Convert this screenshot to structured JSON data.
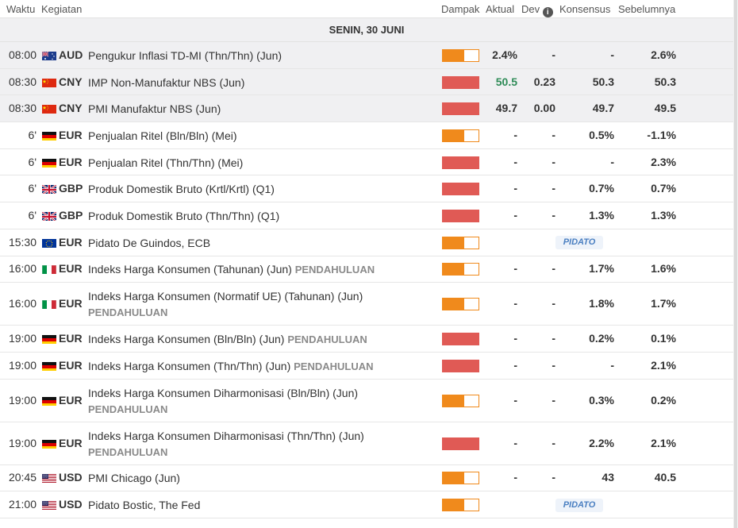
{
  "header": {
    "time": "Waktu",
    "event": "Kegiatan",
    "impact": "Dampak",
    "actual": "Aktual",
    "dev": "Dev",
    "consensus": "Konsensus",
    "previous": "Sebelumnya"
  },
  "date_label": "SENIN, 30 JUNI",
  "colors": {
    "impact_medium": "#f08a1c",
    "impact_high": "#e05a55",
    "actual_up": "#2e8b57",
    "speech_text": "#4a7fc1"
  },
  "rows": [
    {
      "time": "08:00",
      "flag": "au-flag",
      "currency": "AUD",
      "event": "Pengukur Inflasi TD-MI (Thn/Thn) (Jun)",
      "prelim": "",
      "impact": "medium",
      "impact_level": 0.6,
      "actual": "2.4%",
      "actual_trend": "",
      "dev": "-",
      "consensus": "-",
      "previous": "2.6%",
      "speech": "",
      "shaded": true,
      "lines": 1
    },
    {
      "time": "08:30",
      "flag": "cn-flag",
      "currency": "CNY",
      "event": "IMP Non-Manufaktur NBS (Jun)",
      "prelim": "",
      "impact": "high",
      "impact_level": 1.0,
      "actual": "50.5",
      "actual_trend": "up",
      "dev": "0.23",
      "consensus": "50.3",
      "previous": "50.3",
      "speech": "",
      "shaded": true,
      "lines": 1
    },
    {
      "time": "08:30",
      "flag": "cn-flag",
      "currency": "CNY",
      "event": "PMI Manufaktur NBS (Jun)",
      "prelim": "",
      "impact": "high",
      "impact_level": 1.0,
      "actual": "49.7",
      "actual_trend": "",
      "dev": "0.00",
      "consensus": "49.7",
      "previous": "49.5",
      "speech": "",
      "shaded": true,
      "lines": 1
    },
    {
      "time": "6'",
      "flag": "de-flag",
      "currency": "EUR",
      "event": "Penjualan Ritel (Bln/Bln) (Mei)",
      "prelim": "",
      "impact": "medium",
      "impact_level": 0.6,
      "actual": "-",
      "actual_trend": "",
      "dev": "-",
      "consensus": "0.5%",
      "previous": "-1.1%",
      "speech": "",
      "shaded": false,
      "lines": 1
    },
    {
      "time": "6'",
      "flag": "de-flag",
      "currency": "EUR",
      "event": "Penjualan Ritel (Thn/Thn) (Mei)",
      "prelim": "",
      "impact": "high",
      "impact_level": 1.0,
      "actual": "-",
      "actual_trend": "",
      "dev": "-",
      "consensus": "-",
      "previous": "2.3%",
      "speech": "",
      "shaded": false,
      "lines": 1
    },
    {
      "time": "6'",
      "flag": "gb-flag",
      "currency": "GBP",
      "event": "Produk Domestik Bruto (Krtl/Krtl) (Q1)",
      "prelim": "",
      "impact": "high",
      "impact_level": 1.0,
      "actual": "-",
      "actual_trend": "",
      "dev": "-",
      "consensus": "0.7%",
      "previous": "0.7%",
      "speech": "",
      "shaded": false,
      "lines": 1
    },
    {
      "time": "6'",
      "flag": "gb-flag",
      "currency": "GBP",
      "event": "Produk Domestik Bruto (Thn/Thn) (Q1)",
      "prelim": "",
      "impact": "high",
      "impact_level": 1.0,
      "actual": "-",
      "actual_trend": "",
      "dev": "-",
      "consensus": "1.3%",
      "previous": "1.3%",
      "speech": "",
      "shaded": false,
      "lines": 1
    },
    {
      "time": "15:30",
      "flag": "eu-flag",
      "currency": "EUR",
      "event": "Pidato De Guindos, ECB",
      "prelim": "",
      "impact": "medium",
      "impact_level": 0.6,
      "actual": "",
      "actual_trend": "",
      "dev": "",
      "consensus": "",
      "previous": "",
      "speech": "PIDATO",
      "shaded": false,
      "lines": 1
    },
    {
      "time": "16:00",
      "flag": "it-flag",
      "currency": "EUR",
      "event": "Indeks Harga Konsumen (Tahunan) (Jun)",
      "prelim": "PENDAHULUAN",
      "impact": "medium",
      "impact_level": 0.6,
      "actual": "-",
      "actual_trend": "",
      "dev": "-",
      "consensus": "1.7%",
      "previous": "1.6%",
      "speech": "",
      "shaded": false,
      "lines": 1
    },
    {
      "time": "16:00",
      "flag": "it-flag",
      "currency": "EUR",
      "event": "Indeks Harga Konsumen (Normatif UE) (Tahunan) (Jun)",
      "prelim": "PENDAHULUAN",
      "impact": "medium",
      "impact_level": 0.6,
      "actual": "-",
      "actual_trend": "",
      "dev": "-",
      "consensus": "1.8%",
      "previous": "1.7%",
      "speech": "",
      "shaded": false,
      "lines": 2
    },
    {
      "time": "19:00",
      "flag": "de-flag",
      "currency": "EUR",
      "event": "Indeks Harga Konsumen (Bln/Bln) (Jun)",
      "prelim": "PENDAHULUAN",
      "impact": "high",
      "impact_level": 1.0,
      "actual": "-",
      "actual_trend": "",
      "dev": "-",
      "consensus": "0.2%",
      "previous": "0.1%",
      "speech": "",
      "shaded": false,
      "lines": 1
    },
    {
      "time": "19:00",
      "flag": "de-flag",
      "currency": "EUR",
      "event": "Indeks Harga Konsumen (Thn/Thn) (Jun)",
      "prelim": "PENDAHULUAN",
      "impact": "high",
      "impact_level": 1.0,
      "actual": "-",
      "actual_trend": "",
      "dev": "-",
      "consensus": "-",
      "previous": "2.1%",
      "speech": "",
      "shaded": false,
      "lines": 1
    },
    {
      "time": "19:00",
      "flag": "de-flag",
      "currency": "EUR",
      "event": "Indeks Harga Konsumen Diharmonisasi (Bln/Bln) (Jun)",
      "prelim": "PENDAHULUAN",
      "impact": "medium",
      "impact_level": 0.6,
      "actual": "-",
      "actual_trend": "",
      "dev": "-",
      "consensus": "0.3%",
      "previous": "0.2%",
      "speech": "",
      "shaded": false,
      "lines": 2
    },
    {
      "time": "19:00",
      "flag": "de-flag",
      "currency": "EUR",
      "event": "Indeks Harga Konsumen Diharmonisasi (Thn/Thn) (Jun)",
      "prelim": "PENDAHULUAN",
      "impact": "high",
      "impact_level": 1.0,
      "actual": "-",
      "actual_trend": "",
      "dev": "-",
      "consensus": "2.2%",
      "previous": "2.1%",
      "speech": "",
      "shaded": false,
      "lines": 2
    },
    {
      "time": "20:45",
      "flag": "us-flag",
      "currency": "USD",
      "event": "PMI Chicago (Jun)",
      "prelim": "",
      "impact": "medium",
      "impact_level": 0.6,
      "actual": "-",
      "actual_trend": "",
      "dev": "-",
      "consensus": "43",
      "previous": "40.5",
      "speech": "",
      "shaded": false,
      "lines": 1
    },
    {
      "time": "21:00",
      "flag": "us-flag",
      "currency": "USD",
      "event": "Pidato Bostic, The Fed",
      "prelim": "",
      "impact": "medium",
      "impact_level": 0.6,
      "actual": "",
      "actual_trend": "",
      "dev": "",
      "consensus": "",
      "previous": "",
      "speech": "PIDATO",
      "shaded": false,
      "lines": 1
    }
  ]
}
